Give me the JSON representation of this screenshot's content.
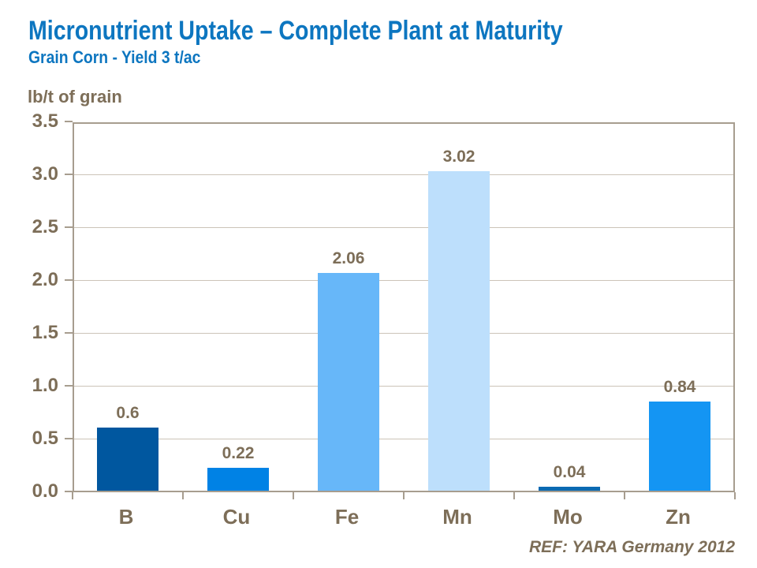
{
  "header": {
    "title": "Micronutrient Uptake – Complete Plant at Maturity",
    "subtitle": "Grain Corn - Yield 3 t/ac"
  },
  "footer": {
    "ref": "REF: YARA Germany 2012"
  },
  "chart_data": {
    "type": "bar",
    "title": "Micronutrient Uptake – Complete Plant at Maturity",
    "subtitle": "Grain Corn - Yield 3 t/ac",
    "ylabel": "lb/t of grain",
    "xlabel": "",
    "categories": [
      "B",
      "Cu",
      "Fe",
      "Mn",
      "Mo",
      "Zn"
    ],
    "values": [
      0.6,
      0.22,
      2.06,
      3.02,
      0.04,
      0.84
    ],
    "value_labels": [
      "0.6",
      "0.22",
      "2.06",
      "3.02",
      "0.04",
      "0.84"
    ],
    "bar_colors": [
      "#00579F",
      "#0082E5",
      "#67B7F9",
      "#BDDFFC",
      "#0A6AB2",
      "#1495F3"
    ],
    "ylim": [
      0,
      3.5
    ],
    "yticks": [
      0,
      0.5,
      1,
      1.5,
      2,
      2.5,
      3,
      3.5
    ],
    "ytick_labels": [
      "0.0",
      "0.5",
      "1.0",
      "1.5",
      "2.0",
      "2.5",
      "3.0",
      "3.5"
    ],
    "grid": "horizontal",
    "legend": "none"
  },
  "colors": {
    "title_blue": "#0D76C0",
    "text_brown": "#7D6E58",
    "axis_border": "#A79D8F",
    "gridline": "#CCC4B8",
    "background": "#FFFFFF"
  }
}
